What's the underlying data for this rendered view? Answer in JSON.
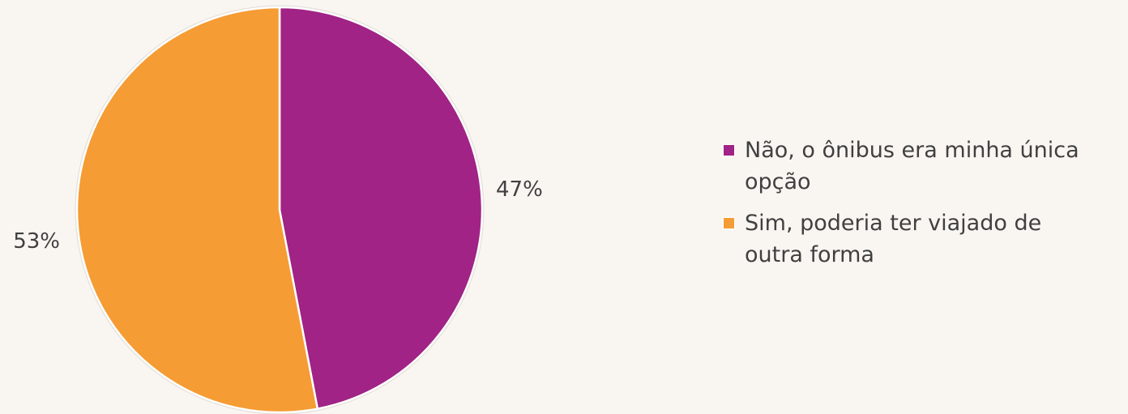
{
  "chart_data": {
    "type": "pie",
    "slices": [
      {
        "label": "Não, o ônibus era minha única opção",
        "value": 47,
        "display": "47%",
        "color": "#a02385"
      },
      {
        "label": "Sim, poderia ter viajado de outra forma",
        "value": 53,
        "display": "53%",
        "color": "#f59c34"
      }
    ],
    "legend_position": "right",
    "start_angle": "top",
    "direction": "clockwise"
  }
}
